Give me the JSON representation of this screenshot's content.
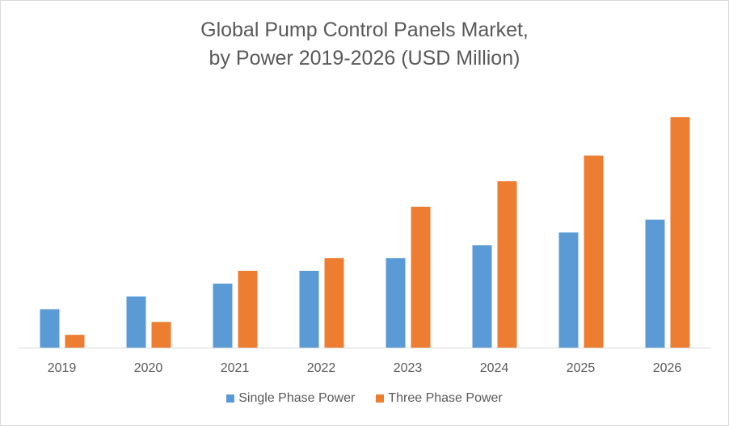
{
  "chart_data": {
    "type": "bar",
    "title": "Global Pump Control Panels Market,",
    "subtitle": "by Power 2019-2026 (USD Million)",
    "xlabel": "",
    "ylabel": "",
    "categories": [
      "2019",
      "2020",
      "2021",
      "2022",
      "2023",
      "2024",
      "2025",
      "2026"
    ],
    "series": [
      {
        "name": "Single Phase Power",
        "color": "#5b9bd5",
        "values": [
          3.0,
          4.0,
          5.0,
          6.0,
          7.0,
          8.0,
          9.0,
          10.0
        ]
      },
      {
        "name": "Three Phase Power",
        "color": "#ed7d31",
        "values": [
          1.0,
          2.0,
          6.0,
          7.0,
          11.0,
          13.0,
          15.0,
          18.0
        ]
      }
    ],
    "ylim": [
      0,
      18
    ],
    "grid": false,
    "y_axis_shown": false,
    "legend_position": "bottom"
  }
}
